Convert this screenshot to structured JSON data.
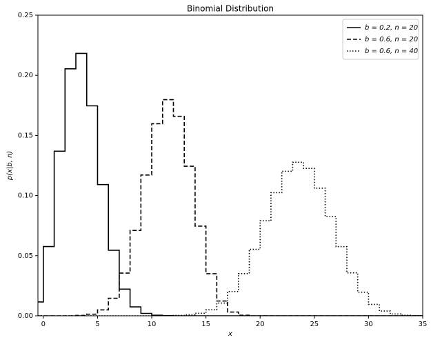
{
  "chart_data": {
    "type": "step",
    "title": "Binomial Distribution",
    "x_label": "x",
    "y_label": "p(x|b, n)",
    "x": [
      0,
      1,
      2,
      3,
      4,
      5,
      6,
      7,
      8,
      9,
      10,
      11,
      12,
      13,
      14,
      15,
      16,
      17,
      18,
      19,
      20,
      21,
      22,
      23,
      24,
      25,
      26,
      27,
      28,
      29,
      30,
      31,
      32,
      33,
      34,
      35
    ],
    "series": [
      {
        "name": "b = 0.2,  n = 20",
        "color": "#000000",
        "linestyle": "solid",
        "values": [
          0.0115,
          0.0576,
          0.1369,
          0.2054,
          0.2182,
          0.1746,
          0.1091,
          0.0545,
          0.0222,
          0.0074,
          0.002,
          0.0005,
          0.0001,
          0,
          0,
          0,
          0,
          0,
          0,
          0,
          0,
          0,
          0,
          0,
          0,
          0,
          0,
          0,
          0,
          0,
          0,
          0,
          0,
          0,
          0,
          0
        ]
      },
      {
        "name": "b = 0.6,  n = 20",
        "color": "#000000",
        "linestyle": "dashed",
        "values": [
          0,
          0,
          0,
          0,
          0.0003,
          0.0013,
          0.0049,
          0.0146,
          0.0355,
          0.071,
          0.1171,
          0.1597,
          0.1797,
          0.1659,
          0.1244,
          0.0746,
          0.035,
          0.0123,
          0.0031,
          0.0005,
          0,
          0,
          0,
          0,
          0,
          0,
          0,
          0,
          0,
          0,
          0,
          0,
          0,
          0,
          0,
          0
        ]
      },
      {
        "name": "b = 0.6,  n = 40",
        "color": "#000000",
        "linestyle": "dotted",
        "values": [
          0,
          0,
          0,
          0,
          0,
          0,
          0,
          0,
          0,
          0,
          0,
          0,
          0.0001,
          0.0003,
          0.0008,
          0.0021,
          0.005,
          0.0106,
          0.0202,
          0.0351,
          0.0553,
          0.079,
          0.1024,
          0.1202,
          0.1277,
          0.1226,
          0.1061,
          0.0825,
          0.0575,
          0.0357,
          0.0196,
          0.0095,
          0.004,
          0.0015,
          0.0005,
          0.0001
        ]
      }
    ],
    "xlim": [
      -0.5,
      35
    ],
    "xticks": [
      0,
      5,
      10,
      15,
      20,
      25,
      30,
      35
    ],
    "ylim": [
      0,
      0.25
    ],
    "yticks": [
      {
        "value": 0,
        "label": "0.00"
      },
      {
        "value": 0.05,
        "label": "0.05"
      },
      {
        "value": 0.1,
        "label": "0.10"
      },
      {
        "value": 0.15,
        "label": "0.15"
      },
      {
        "value": 0.2,
        "label": "0.20"
      },
      {
        "value": 0.25,
        "label": "0.25"
      }
    ],
    "legend": "upper right",
    "grid": false
  }
}
